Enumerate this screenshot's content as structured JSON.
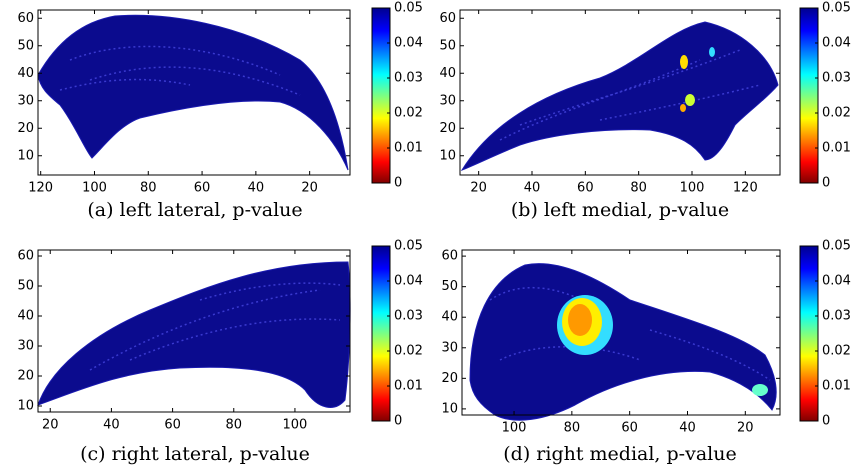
{
  "chart_data": [
    {
      "type": "surface",
      "caption": "(a) left lateral, p-value",
      "xlim": [
        121,
        5
      ],
      "xticks": [
        120,
        100,
        80,
        60,
        40,
        20
      ],
      "ylim": [
        3,
        63
      ],
      "yticks": [
        10,
        20,
        30,
        40,
        50,
        60
      ],
      "clim": [
        0,
        0.05
      ],
      "cticks": [
        0,
        0.01,
        0.02,
        0.03,
        0.04,
        0.05
      ]
    },
    {
      "type": "surface",
      "caption": "(b) left medial, p-value",
      "xlim": [
        13,
        133
      ],
      "xticks": [
        20,
        40,
        60,
        80,
        100,
        120
      ],
      "ylim": [
        3,
        63
      ],
      "yticks": [
        10,
        20,
        30,
        40,
        50,
        60
      ],
      "clim": [
        0,
        0.05
      ],
      "cticks": [
        0,
        0.01,
        0.02,
        0.03,
        0.04,
        0.05
      ]
    },
    {
      "type": "surface",
      "caption": "(c) right lateral, p-value",
      "xlim": [
        16,
        118
      ],
      "xticks": [
        20,
        40,
        60,
        80,
        100
      ],
      "ylim": [
        8,
        62
      ],
      "yticks": [
        10,
        20,
        30,
        40,
        50,
        60
      ],
      "clim": [
        0,
        0.05
      ],
      "cticks": [
        0,
        0.01,
        0.02,
        0.03,
        0.04,
        0.05
      ]
    },
    {
      "type": "surface",
      "caption": "(d) right medial, p-value",
      "xlim": [
        118,
        8
      ],
      "xticks": [
        100,
        80,
        60,
        40,
        20
      ],
      "ylim": [
        8,
        62
      ],
      "yticks": [
        10,
        20,
        30,
        40,
        50,
        60
      ],
      "clim": [
        0,
        0.05
      ],
      "cticks": [
        0,
        0.01,
        0.02,
        0.03,
        0.04,
        0.05
      ]
    }
  ]
}
